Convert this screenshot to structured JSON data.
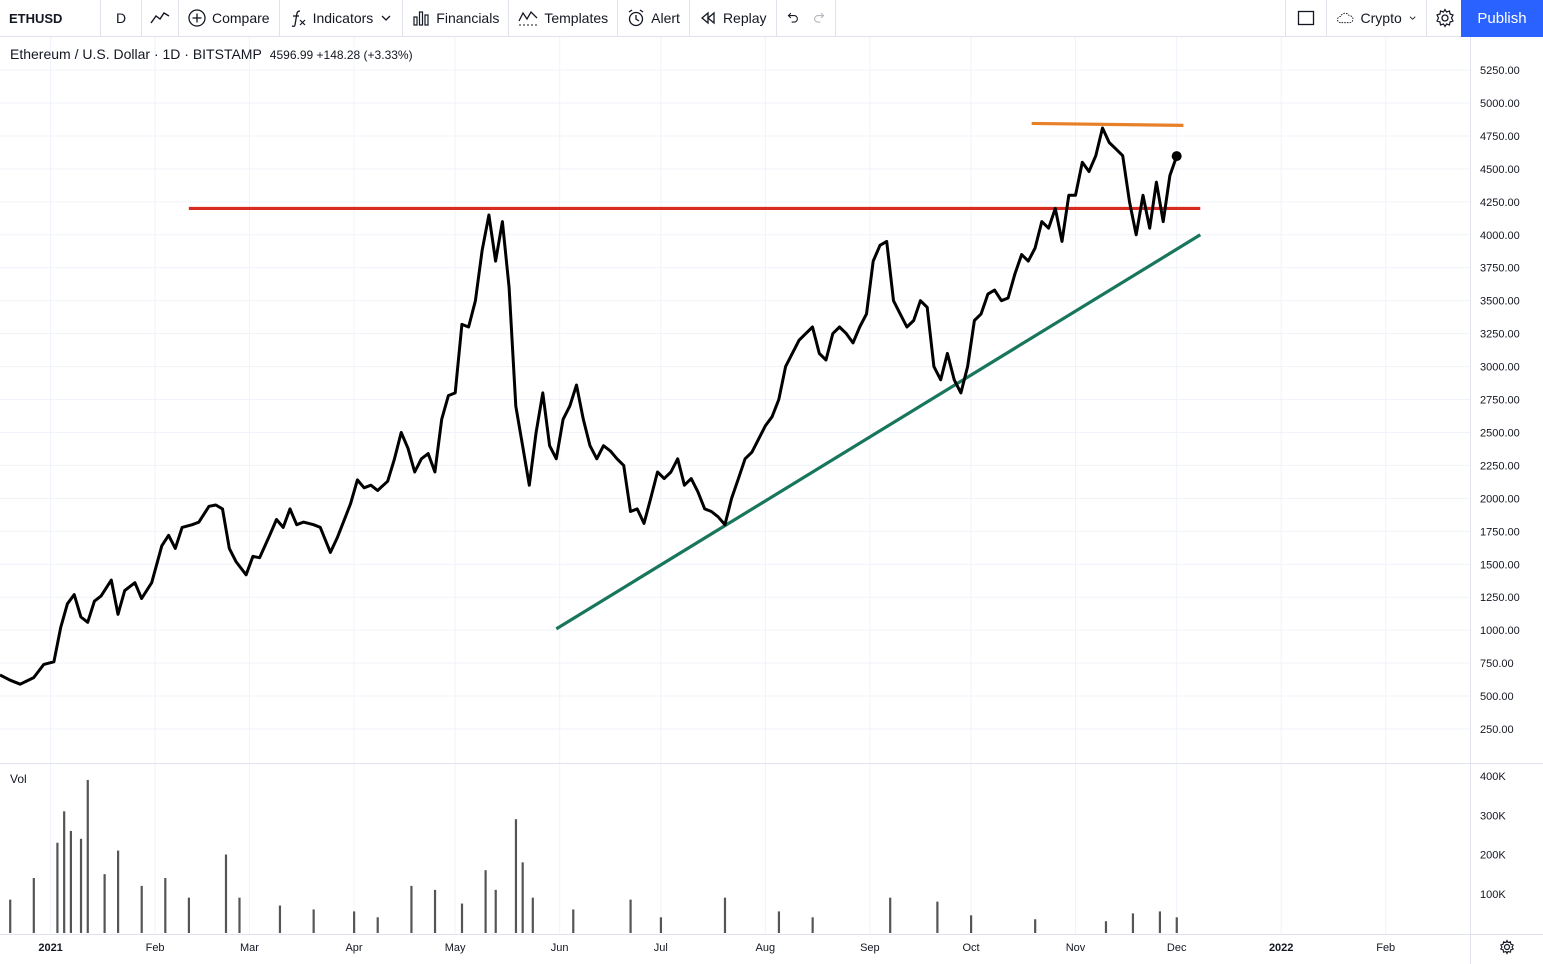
{
  "toolbar": {
    "symbol": "ETHUSD",
    "interval": "D",
    "compare_label": "Compare",
    "indicators_label": "Indicators",
    "financials_label": "Financials",
    "templates_label": "Templates",
    "alert_label": "Alert",
    "replay_label": "Replay",
    "crypto_label": "Crypto",
    "publish_label": "Publish"
  },
  "legend": {
    "title": "Ethereum / U.S. Dollar · 1D · BITSTAMP",
    "values": "4596.99  +148.28 (+3.33%)"
  },
  "volume_pane": {
    "label": "Vol"
  },
  "colors": {
    "price_line": "#000000",
    "resistance": "#d62c1f",
    "top_line": "#e8802a",
    "support": "#17765c",
    "accent": "#2962ff",
    "volume_bar": "#555555"
  },
  "chart_data": {
    "type": "line",
    "price_axis": {
      "ticks": [
        "5250.00",
        "5000.00",
        "4750.00",
        "4500.00",
        "4250.00",
        "4000.00",
        "3750.00",
        "3500.00",
        "3250.00",
        "3000.00",
        "2750.00",
        "2500.00",
        "2250.00",
        "2000.00",
        "1750.00",
        "1500.00",
        "1250.00",
        "1000.00",
        "750.00",
        "500.00",
        "250.00"
      ],
      "tick_values": [
        5250,
        5000,
        4750,
        4500,
        4250,
        4000,
        3750,
        3500,
        3250,
        3000,
        2750,
        2500,
        2250,
        2000,
        1750,
        1500,
        1250,
        1000,
        750,
        500,
        250
      ],
      "ylim": [
        0,
        5500
      ]
    },
    "volume_axis": {
      "ticks": [
        "400K",
        "300K",
        "200K",
        "100K"
      ],
      "tick_values": [
        400000,
        300000,
        200000,
        100000
      ]
    },
    "time_axis": {
      "labels": [
        {
          "text": "2021",
          "x": "2021-01-01",
          "bold": true
        },
        {
          "text": "Feb",
          "x": "2021-02-01"
        },
        {
          "text": "Mar",
          "x": "2021-03-01"
        },
        {
          "text": "Apr",
          "x": "2021-04-01"
        },
        {
          "text": "May",
          "x": "2021-05-01"
        },
        {
          "text": "Jun",
          "x": "2021-06-01"
        },
        {
          "text": "Jul",
          "x": "2021-07-01"
        },
        {
          "text": "Aug",
          "x": "2021-08-01"
        },
        {
          "text": "Sep",
          "x": "2021-09-01"
        },
        {
          "text": "Oct",
          "x": "2021-10-01"
        },
        {
          "text": "Nov",
          "x": "2021-11-01"
        },
        {
          "text": "Dec",
          "x": "2021-12-01"
        },
        {
          "text": "2022",
          "x": "2022-01-01",
          "bold": true
        },
        {
          "text": "Feb",
          "x": "2022-02-01"
        }
      ],
      "xlim": [
        "2020-12-17",
        "2022-02-26"
      ]
    },
    "series": [
      {
        "values": [
          [
            "2020-12-17",
            660
          ],
          [
            "2020-12-20",
            620
          ],
          [
            "2020-12-23",
            590
          ],
          [
            "2020-12-27",
            640
          ],
          [
            "2020-12-30",
            740
          ],
          [
            "2021-01-02",
            760
          ],
          [
            "2021-01-04",
            1020
          ],
          [
            "2021-01-06",
            1200
          ],
          [
            "2021-01-08",
            1270
          ],
          [
            "2021-01-10",
            1100
          ],
          [
            "2021-01-12",
            1060
          ],
          [
            "2021-01-14",
            1220
          ],
          [
            "2021-01-16",
            1260
          ],
          [
            "2021-01-19",
            1380
          ],
          [
            "2021-01-21",
            1120
          ],
          [
            "2021-01-23",
            1300
          ],
          [
            "2021-01-26",
            1360
          ],
          [
            "2021-01-28",
            1240
          ],
          [
            "2021-01-31",
            1360
          ],
          [
            "2021-02-03",
            1640
          ],
          [
            "2021-02-05",
            1720
          ],
          [
            "2021-02-07",
            1620
          ],
          [
            "2021-02-09",
            1780
          ],
          [
            "2021-02-12",
            1800
          ],
          [
            "2021-02-14",
            1820
          ],
          [
            "2021-02-17",
            1940
          ],
          [
            "2021-02-19",
            1950
          ],
          [
            "2021-02-21",
            1920
          ],
          [
            "2021-02-23",
            1620
          ],
          [
            "2021-02-25",
            1520
          ],
          [
            "2021-02-28",
            1420
          ],
          [
            "2021-03-02",
            1560
          ],
          [
            "2021-03-04",
            1550
          ],
          [
            "2021-03-07",
            1720
          ],
          [
            "2021-03-09",
            1840
          ],
          [
            "2021-03-11",
            1780
          ],
          [
            "2021-03-13",
            1920
          ],
          [
            "2021-03-15",
            1800
          ],
          [
            "2021-03-17",
            1820
          ],
          [
            "2021-03-20",
            1800
          ],
          [
            "2021-03-22",
            1780
          ],
          [
            "2021-03-25",
            1590
          ],
          [
            "2021-03-27",
            1700
          ],
          [
            "2021-03-29",
            1830
          ],
          [
            "2021-03-31",
            1960
          ],
          [
            "2021-04-02",
            2140
          ],
          [
            "2021-04-04",
            2080
          ],
          [
            "2021-04-06",
            2100
          ],
          [
            "2021-04-08",
            2060
          ],
          [
            "2021-04-11",
            2130
          ],
          [
            "2021-04-13",
            2300
          ],
          [
            "2021-04-15",
            2500
          ],
          [
            "2021-04-17",
            2380
          ],
          [
            "2021-04-19",
            2200
          ],
          [
            "2021-04-21",
            2300
          ],
          [
            "2021-04-23",
            2340
          ],
          [
            "2021-04-25",
            2200
          ],
          [
            "2021-04-27",
            2600
          ],
          [
            "2021-04-29",
            2780
          ],
          [
            "2021-05-01",
            2800
          ],
          [
            "2021-05-03",
            3320
          ],
          [
            "2021-05-05",
            3300
          ],
          [
            "2021-05-07",
            3500
          ],
          [
            "2021-05-09",
            3880
          ],
          [
            "2021-05-11",
            4150
          ],
          [
            "2021-05-13",
            3800
          ],
          [
            "2021-05-15",
            4100
          ],
          [
            "2021-05-17",
            3600
          ],
          [
            "2021-05-19",
            2700
          ],
          [
            "2021-05-21",
            2400
          ],
          [
            "2021-05-23",
            2100
          ],
          [
            "2021-05-25",
            2500
          ],
          [
            "2021-05-27",
            2800
          ],
          [
            "2021-05-29",
            2400
          ],
          [
            "2021-05-31",
            2300
          ],
          [
            "2021-06-02",
            2600
          ],
          [
            "2021-06-04",
            2700
          ],
          [
            "2021-06-06",
            2860
          ],
          [
            "2021-06-08",
            2600
          ],
          [
            "2021-06-10",
            2400
          ],
          [
            "2021-06-12",
            2300
          ],
          [
            "2021-06-14",
            2400
          ],
          [
            "2021-06-16",
            2360
          ],
          [
            "2021-06-18",
            2300
          ],
          [
            "2021-06-20",
            2250
          ],
          [
            "2021-06-22",
            1900
          ],
          [
            "2021-06-24",
            1920
          ],
          [
            "2021-06-26",
            1810
          ],
          [
            "2021-06-28",
            2000
          ],
          [
            "2021-06-30",
            2200
          ],
          [
            "2021-07-02",
            2150
          ],
          [
            "2021-07-04",
            2200
          ],
          [
            "2021-07-06",
            2300
          ],
          [
            "2021-07-08",
            2100
          ],
          [
            "2021-07-10",
            2150
          ],
          [
            "2021-07-12",
            2050
          ],
          [
            "2021-07-14",
            1920
          ],
          [
            "2021-07-16",
            1900
          ],
          [
            "2021-07-18",
            1860
          ],
          [
            "2021-07-20",
            1800
          ],
          [
            "2021-07-22",
            2000
          ],
          [
            "2021-07-24",
            2150
          ],
          [
            "2021-07-26",
            2300
          ],
          [
            "2021-07-28",
            2350
          ],
          [
            "2021-07-30",
            2450
          ],
          [
            "2021-08-01",
            2550
          ],
          [
            "2021-08-03",
            2620
          ],
          [
            "2021-08-05",
            2750
          ],
          [
            "2021-08-07",
            3000
          ],
          [
            "2021-08-09",
            3100
          ],
          [
            "2021-08-11",
            3200
          ],
          [
            "2021-08-13",
            3250
          ],
          [
            "2021-08-15",
            3300
          ],
          [
            "2021-08-17",
            3100
          ],
          [
            "2021-08-19",
            3050
          ],
          [
            "2021-08-21",
            3250
          ],
          [
            "2021-08-23",
            3300
          ],
          [
            "2021-08-25",
            3250
          ],
          [
            "2021-08-27",
            3180
          ],
          [
            "2021-08-29",
            3300
          ],
          [
            "2021-08-31",
            3400
          ],
          [
            "2021-09-02",
            3800
          ],
          [
            "2021-09-04",
            3920
          ],
          [
            "2021-09-06",
            3950
          ],
          [
            "2021-09-08",
            3500
          ],
          [
            "2021-09-10",
            3400
          ],
          [
            "2021-09-12",
            3300
          ],
          [
            "2021-09-14",
            3350
          ],
          [
            "2021-09-16",
            3500
          ],
          [
            "2021-09-18",
            3450
          ],
          [
            "2021-09-20",
            3000
          ],
          [
            "2021-09-22",
            2900
          ],
          [
            "2021-09-24",
            3100
          ],
          [
            "2021-09-26",
            2900
          ],
          [
            "2021-09-28",
            2800
          ],
          [
            "2021-09-30",
            3000
          ],
          [
            "2021-10-02",
            3350
          ],
          [
            "2021-10-04",
            3400
          ],
          [
            "2021-10-06",
            3550
          ],
          [
            "2021-10-08",
            3580
          ],
          [
            "2021-10-10",
            3500
          ],
          [
            "2021-10-12",
            3520
          ],
          [
            "2021-10-14",
            3700
          ],
          [
            "2021-10-16",
            3850
          ],
          [
            "2021-10-18",
            3800
          ],
          [
            "2021-10-20",
            3900
          ],
          [
            "2021-10-22",
            4100
          ],
          [
            "2021-10-24",
            4050
          ],
          [
            "2021-10-26",
            4200
          ],
          [
            "2021-10-28",
            3950
          ],
          [
            "2021-10-30",
            4300
          ],
          [
            "2021-11-01",
            4300
          ],
          [
            "2021-11-03",
            4550
          ],
          [
            "2021-11-05",
            4480
          ],
          [
            "2021-11-07",
            4600
          ],
          [
            "2021-11-09",
            4810
          ],
          [
            "2021-11-11",
            4700
          ],
          [
            "2021-11-13",
            4650
          ],
          [
            "2021-11-15",
            4600
          ],
          [
            "2021-11-17",
            4250
          ],
          [
            "2021-11-19",
            4000
          ],
          [
            "2021-11-21",
            4300
          ],
          [
            "2021-11-23",
            4050
          ],
          [
            "2021-11-25",
            4400
          ],
          [
            "2021-11-27",
            4100
          ],
          [
            "2021-11-29",
            4450
          ],
          [
            "2021-12-01",
            4596.99
          ]
        ]
      }
    ],
    "annotations": [
      {
        "kind": "resistance",
        "color": "#d62c1f",
        "from": [
          "2021-02-11",
          4200
        ],
        "to": [
          "2021-12-08",
          4200
        ]
      },
      {
        "kind": "top",
        "color": "#e8802a",
        "from": [
          "2021-10-19",
          4845
        ],
        "to": [
          "2021-12-03",
          4830
        ]
      },
      {
        "kind": "support",
        "color": "#17765c",
        "from": [
          "2021-05-31",
          1010
        ],
        "to": [
          "2021-12-08",
          4000
        ]
      }
    ],
    "volume": {
      "x": [
        "2020-12-20",
        "2020-12-27",
        "2021-01-03",
        "2021-01-05",
        "2021-01-07",
        "2021-01-10",
        "2021-01-12",
        "2021-01-17",
        "2021-01-21",
        "2021-01-28",
        "2021-02-04",
        "2021-02-11",
        "2021-02-22",
        "2021-02-26",
        "2021-03-10",
        "2021-03-20",
        "2021-04-01",
        "2021-04-08",
        "2021-04-18",
        "2021-04-25",
        "2021-05-03",
        "2021-05-10",
        "2021-05-13",
        "2021-05-19",
        "2021-05-21",
        "2021-05-24",
        "2021-06-05",
        "2021-06-22",
        "2021-07-01",
        "2021-07-20",
        "2021-08-05",
        "2021-08-15",
        "2021-09-07",
        "2021-09-21",
        "2021-10-01",
        "2021-10-20",
        "2021-11-10",
        "2021-11-18",
        "2021-11-26",
        "2021-12-01"
      ],
      "values": [
        85000,
        140000,
        230000,
        310000,
        260000,
        240000,
        390000,
        150000,
        210000,
        120000,
        140000,
        90000,
        200000,
        90000,
        70000,
        60000,
        55000,
        40000,
        120000,
        110000,
        75000,
        160000,
        110000,
        290000,
        180000,
        90000,
        60000,
        85000,
        40000,
        90000,
        55000,
        40000,
        90000,
        80000,
        45000,
        35000,
        30000,
        50000,
        55000,
        40000
      ]
    }
  }
}
